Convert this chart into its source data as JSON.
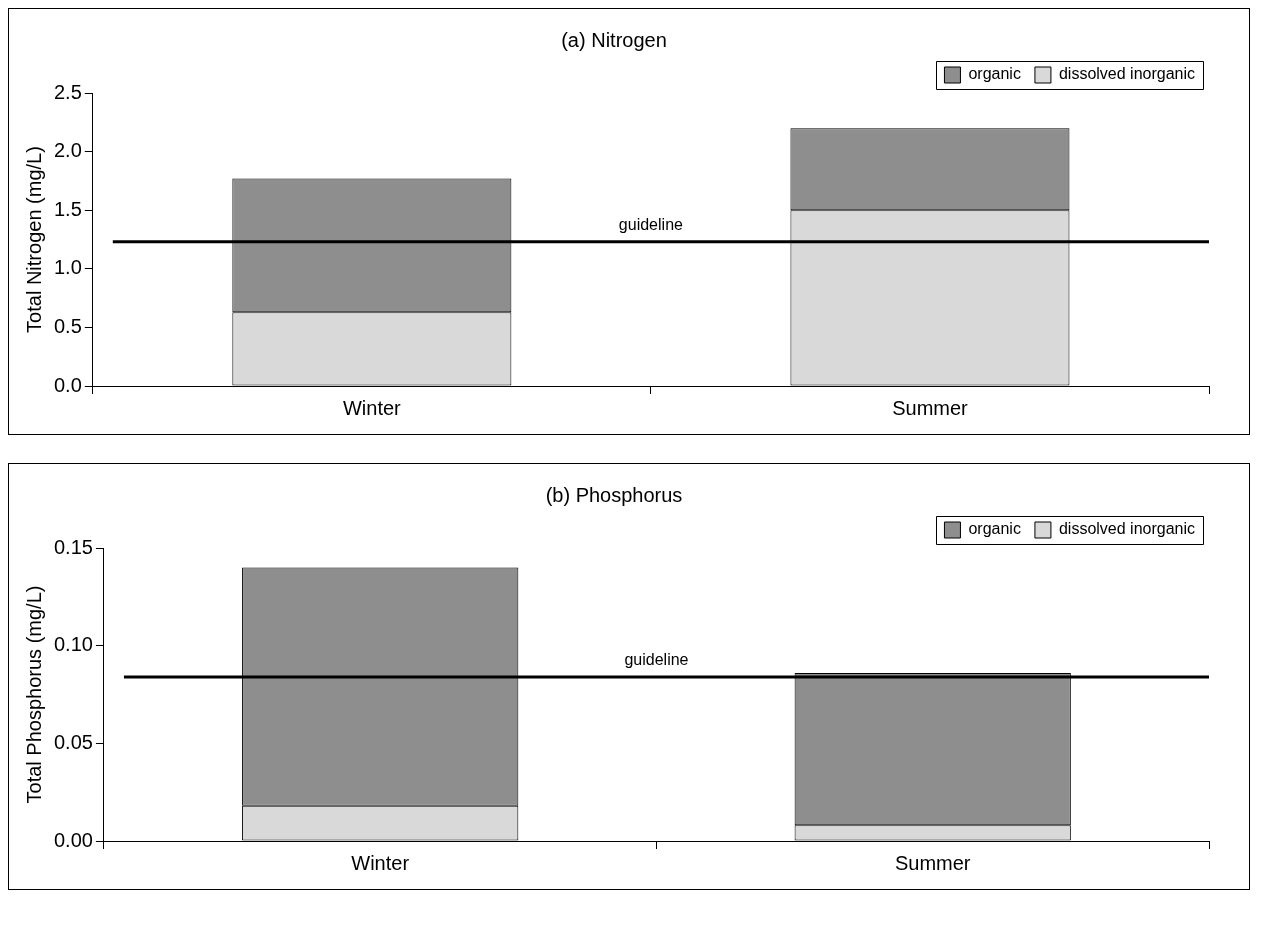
{
  "chart_data": [
    {
      "type": "bar",
      "title": "(a) Nitrogen",
      "ylabel": "Total Nitrogen (mg/L)",
      "categories": [
        "Winter",
        "Summer"
      ],
      "stacked": true,
      "series": [
        {
          "name": "dissolved inorganic",
          "color": "#d9d9d9",
          "values": [
            0.63,
            1.5
          ]
        },
        {
          "name": "organic",
          "color": "#8e8e8e",
          "values": [
            1.14,
            0.7
          ]
        }
      ],
      "ylim": [
        0,
        2.5
      ],
      "yticks": [
        {
          "value": 0,
          "label": "0.0"
        },
        0.5,
        {
          "value": 1,
          "label": "1.0"
        },
        1.5,
        {
          "value": 2,
          "label": "2.0"
        },
        2.5
      ],
      "ref_lines": [
        {
          "axis": "y",
          "value": 1.23,
          "label": "guideline",
          "color": "#000000"
        }
      ],
      "grid": false,
      "legend": "top right"
    },
    {
      "type": "bar",
      "title": "(b) Phosphorus",
      "ylabel": "Total Phosphorus (mg/L)",
      "categories": [
        "Winter",
        "Summer"
      ],
      "stacked": true,
      "series": [
        {
          "name": "dissolved inorganic",
          "color": "#d9d9d9",
          "values": [
            0.018,
            0.008
          ]
        },
        {
          "name": "organic",
          "color": "#8e8e8e",
          "values": [
            0.122,
            0.078
          ]
        }
      ],
      "ylim": [
        0,
        0.15
      ],
      "yticks": [
        {
          "value": 0,
          "label": "0.00"
        },
        {
          "value": 0.05,
          "label": "0.05"
        },
        {
          "value": 0.1,
          "label": "0.10"
        },
        0.15
      ],
      "ref_lines": [
        {
          "axis": "y",
          "value": 0.084,
          "label": "guideline",
          "color": "#000000"
        }
      ],
      "grid": false,
      "legend": "top right"
    }
  ]
}
